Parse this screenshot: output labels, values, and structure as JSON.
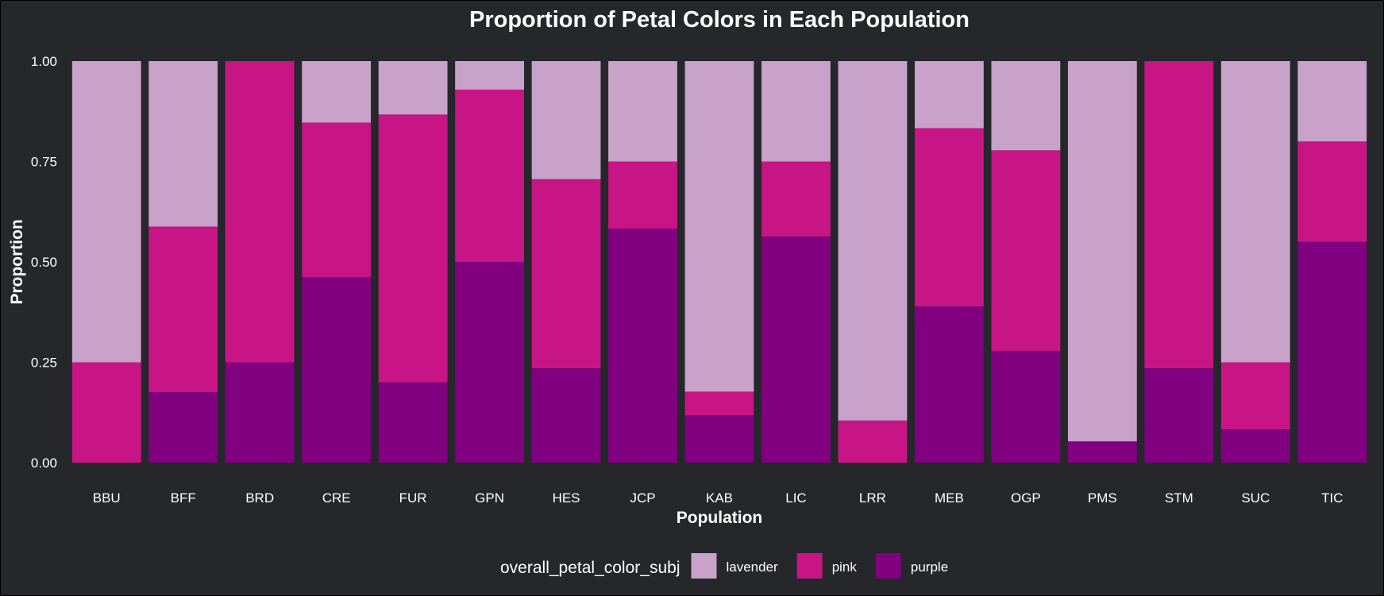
{
  "chart_data": {
    "type": "bar",
    "stacked": true,
    "title": "Proportion of Petal Colors in Each Population",
    "xlabel": "Population",
    "ylabel": "Proportion",
    "ylim": [
      0,
      1
    ],
    "yticks": [
      "0.00",
      "0.25",
      "0.50",
      "0.75",
      "1.00"
    ],
    "categories": [
      "BBU",
      "BFF",
      "BRD",
      "CRE",
      "FUR",
      "GPN",
      "HES",
      "JCP",
      "KAB",
      "LIC",
      "LRR",
      "MEB",
      "OGP",
      "PMS",
      "STM",
      "SUC",
      "TIC"
    ],
    "legend": {
      "title": "overall_petal_color_subj",
      "position": "bottom"
    },
    "series": [
      {
        "name": "purple",
        "color": "#800080",
        "values": [
          0.0,
          0.176,
          0.25,
          0.462,
          0.2,
          0.5,
          0.235,
          0.583,
          0.118,
          0.563,
          0.0,
          0.389,
          0.278,
          0.053,
          0.235,
          0.083,
          0.55
        ]
      },
      {
        "name": "pink",
        "color": "#c71585",
        "values": [
          0.25,
          0.412,
          0.75,
          0.385,
          0.667,
          0.429,
          0.471,
          0.167,
          0.059,
          0.187,
          0.105,
          0.444,
          0.5,
          0.0,
          0.765,
          0.167,
          0.25
        ]
      },
      {
        "name": "lavender",
        "color": "#c8a2c8",
        "values": [
          0.75,
          0.412,
          0.0,
          0.153,
          0.133,
          0.071,
          0.294,
          0.25,
          0.823,
          0.25,
          0.895,
          0.167,
          0.222,
          0.947,
          0.0,
          0.75,
          0.2
        ]
      }
    ],
    "legend_order": [
      "lavender",
      "pink",
      "purple"
    ],
    "grid": false
  }
}
